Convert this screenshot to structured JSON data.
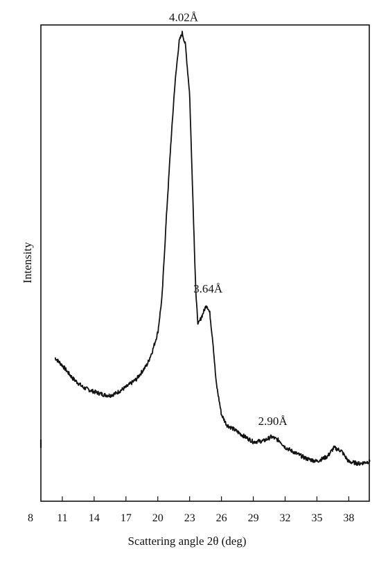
{
  "chart_data": {
    "type": "line",
    "title": "",
    "xlabel": "Scattering angle 2θ (deg)",
    "ylabel": "Intensity",
    "xlim": [
      8,
      40
    ],
    "ylim": [
      0,
      100
    ],
    "xticks": [
      "8",
      "11",
      "14",
      "17",
      "20",
      "23",
      "26",
      "29",
      "32",
      "35",
      "38"
    ],
    "grid": false,
    "legend": "none",
    "series": [
      {
        "x": [
          10.3,
          11,
          12,
          13,
          14,
          15,
          15.5,
          16,
          17,
          18,
          19,
          19.5,
          20,
          20.4,
          20.8,
          21.2,
          21.6,
          22,
          22.3,
          22.6,
          23,
          23.3,
          23.6,
          23.8,
          24.2,
          24.6,
          24.9,
          25.2,
          25.5,
          26,
          26.5,
          27,
          28,
          29,
          30,
          30.7,
          31.5,
          32,
          33,
          34,
          35,
          36,
          36.6,
          37.3,
          38,
          39,
          40
        ],
        "y": [
          27,
          25.3,
          22.4,
          20.4,
          19.5,
          18.8,
          18.7,
          19.1,
          20.5,
          22.3,
          25.5,
          28.5,
          32.5,
          40.3,
          57.5,
          73,
          86.8,
          96.4,
          98.4,
          95.8,
          85,
          62.5,
          40.3,
          34.2,
          36.4,
          38.7,
          36.8,
          30.3,
          21.5,
          14.5,
          12.2,
          11.5,
          9.9,
          8.5,
          8.7,
          9.6,
          8.7,
          7.3,
          6,
          4.8,
          4.2,
          5.3,
          7.2,
          6.5,
          4.1,
          3.7,
          4.2
        ]
      }
    ],
    "annotations": [
      {
        "text": "4.02Å",
        "x": 22.3,
        "y": 98.4
      },
      {
        "text": "3.64Å",
        "x": 24.6,
        "y": 38.7
      },
      {
        "text": "2.90Å",
        "x": 30.7,
        "y": 9.6
      }
    ],
    "colors": {
      "line": "#111111",
      "axes": "#111111"
    }
  }
}
